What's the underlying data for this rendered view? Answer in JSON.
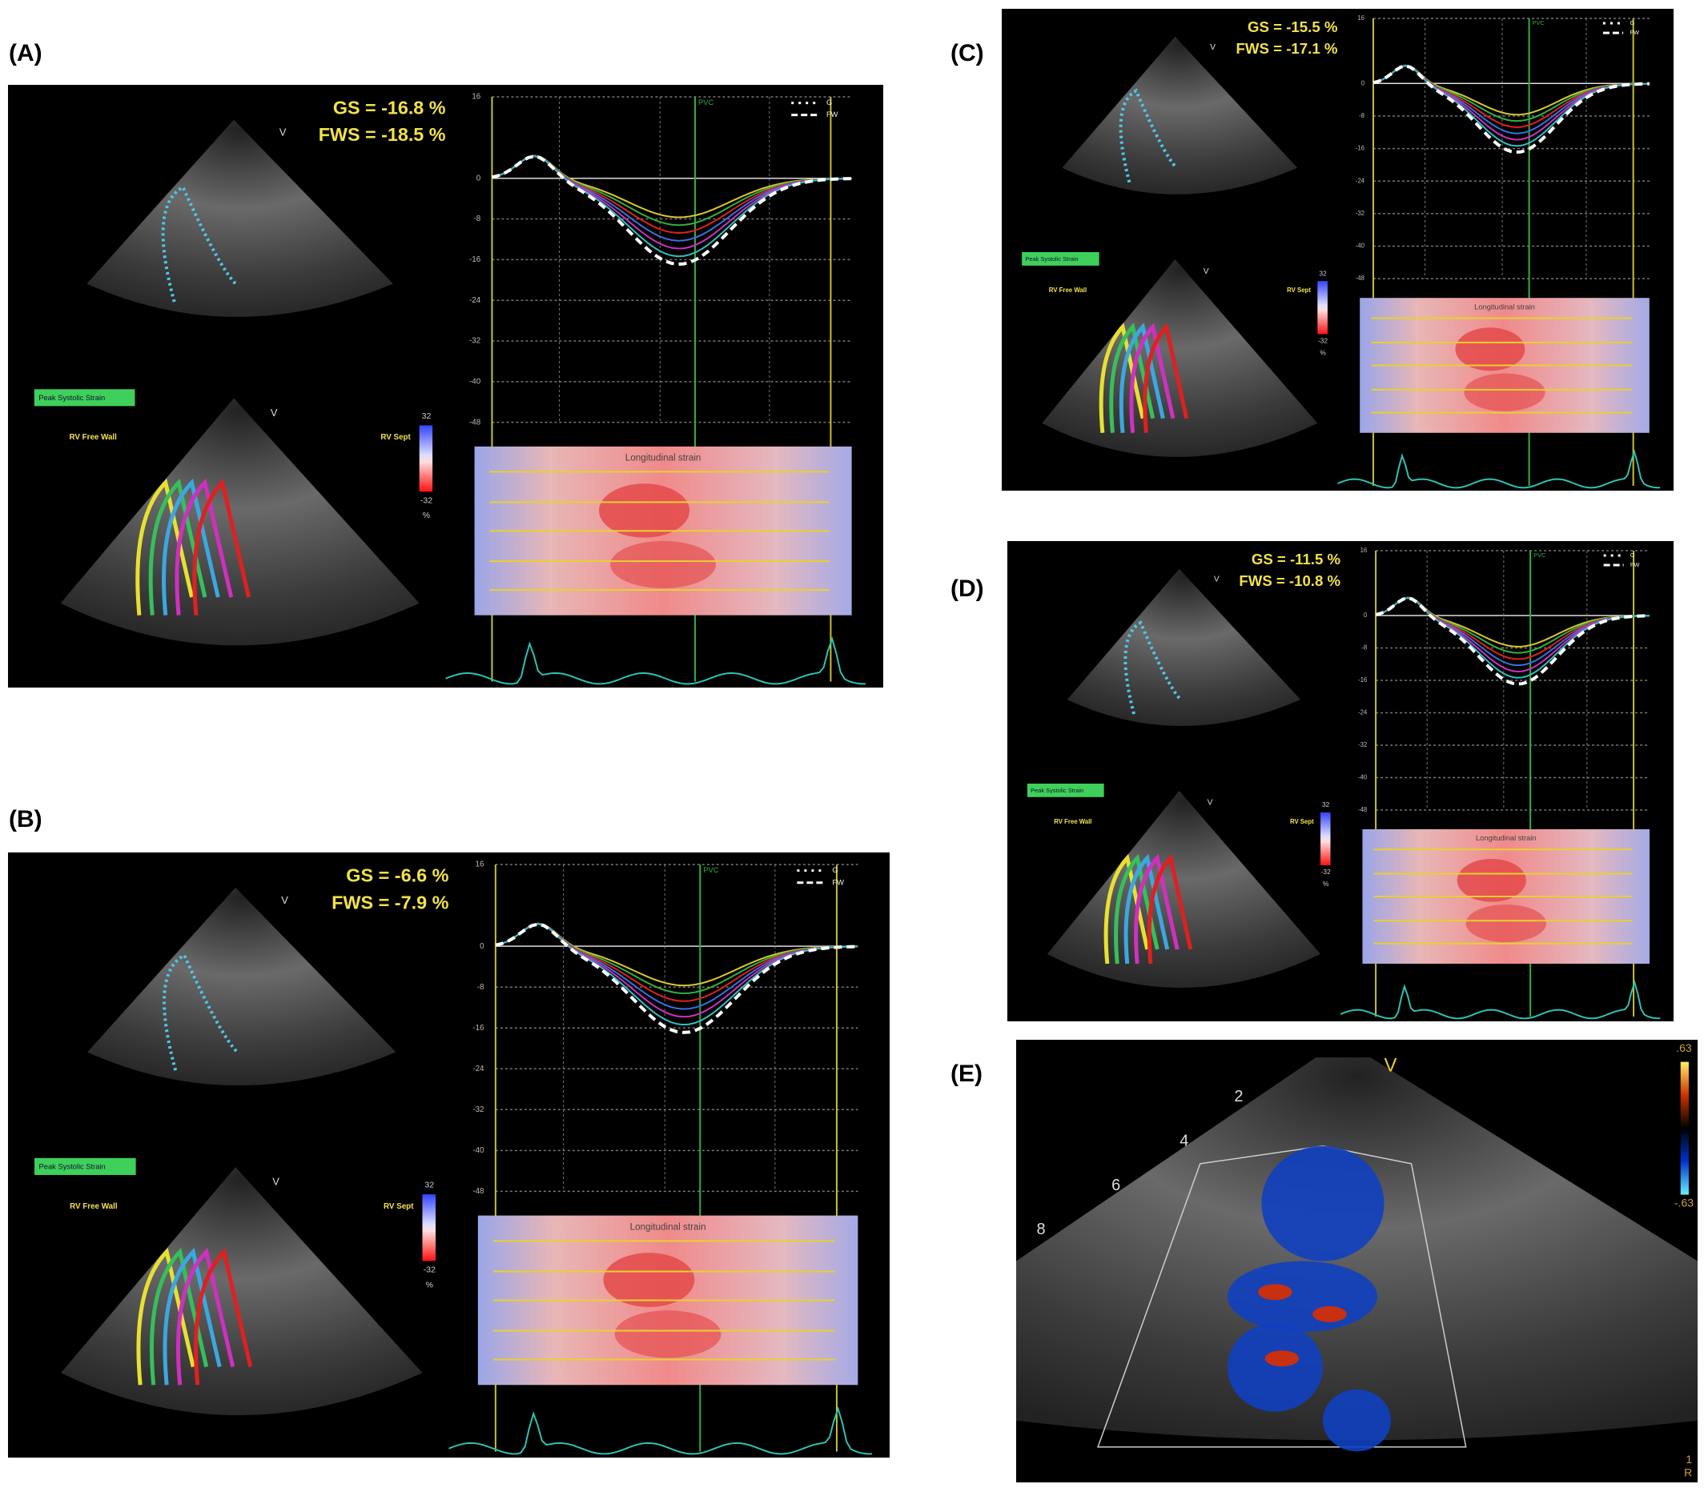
{
  "panels": [
    {
      "label": "(A)",
      "gs": "GS = -16.8 %",
      "fws": "FWS = -18.5 %",
      "peak": "Peak Systolic Strain",
      "free_wall": "RV Free Wall",
      "sept": "RV Sept",
      "marker": "V",
      "scale_max": "32",
      "scale_min": "-32",
      "scale_unit": "%",
      "yticks": [
        16,
        0,
        -8,
        -16,
        -24,
        -32,
        -40,
        -48
      ],
      "pvc": "PVC",
      "strip_title": "Longitudinal strain",
      "legend": [
        "G",
        "FW"
      ]
    },
    {
      "label": "(B)",
      "gs": "GS = -6.6 %",
      "fws": "FWS = -7.9 %",
      "peak": "Peak Systolic Strain",
      "free_wall": "RV Free Wall",
      "sept": "RV Sept",
      "marker": "V",
      "scale_max": "32",
      "scale_min": "-32",
      "scale_unit": "%",
      "yticks": [
        16,
        0,
        -8,
        -16,
        -24,
        -32,
        -40,
        -48
      ],
      "pvc": "PVC",
      "strip_title": "Longitudinal strain",
      "legend": [
        "G",
        "FW"
      ]
    },
    {
      "label": "(C)",
      "gs": "GS = -15.5 %",
      "fws": "FWS = -17.1 %",
      "peak": "Peak Systolic Strain",
      "free_wall": "RV Free Wall",
      "sept": "RV Sept",
      "marker": "V",
      "scale_max": "32",
      "scale_min": "-32",
      "scale_unit": "%",
      "yticks": [
        16,
        0,
        -8,
        -16,
        -24,
        -32,
        -40,
        -48
      ],
      "pvc": "PVC",
      "strip_title": "Longitudinal strain",
      "legend": [
        "G",
        "FW"
      ]
    },
    {
      "label": "(D)",
      "gs": "GS = -11.5 %",
      "fws": "FWS = -10.8 %",
      "peak": "Peak Systolic Strain",
      "free_wall": "RV Free Wall",
      "sept": "RV Sept",
      "marker": "V",
      "scale_max": "32",
      "scale_min": "-32",
      "scale_unit": "%",
      "yticks": [
        16,
        0,
        -8,
        -16,
        -24,
        -32,
        -40,
        -48
      ],
      "pvc": "PVC",
      "strip_title": "Longitudinal strain",
      "legend": [
        "G",
        "FW"
      ]
    },
    {
      "label": "(E)",
      "marker": "V",
      "scale_max": ".63",
      "scale_min": "-.63",
      "depth": [
        "2",
        "4",
        "6",
        "8"
      ],
      "index": "1",
      "orient": "R"
    }
  ]
}
